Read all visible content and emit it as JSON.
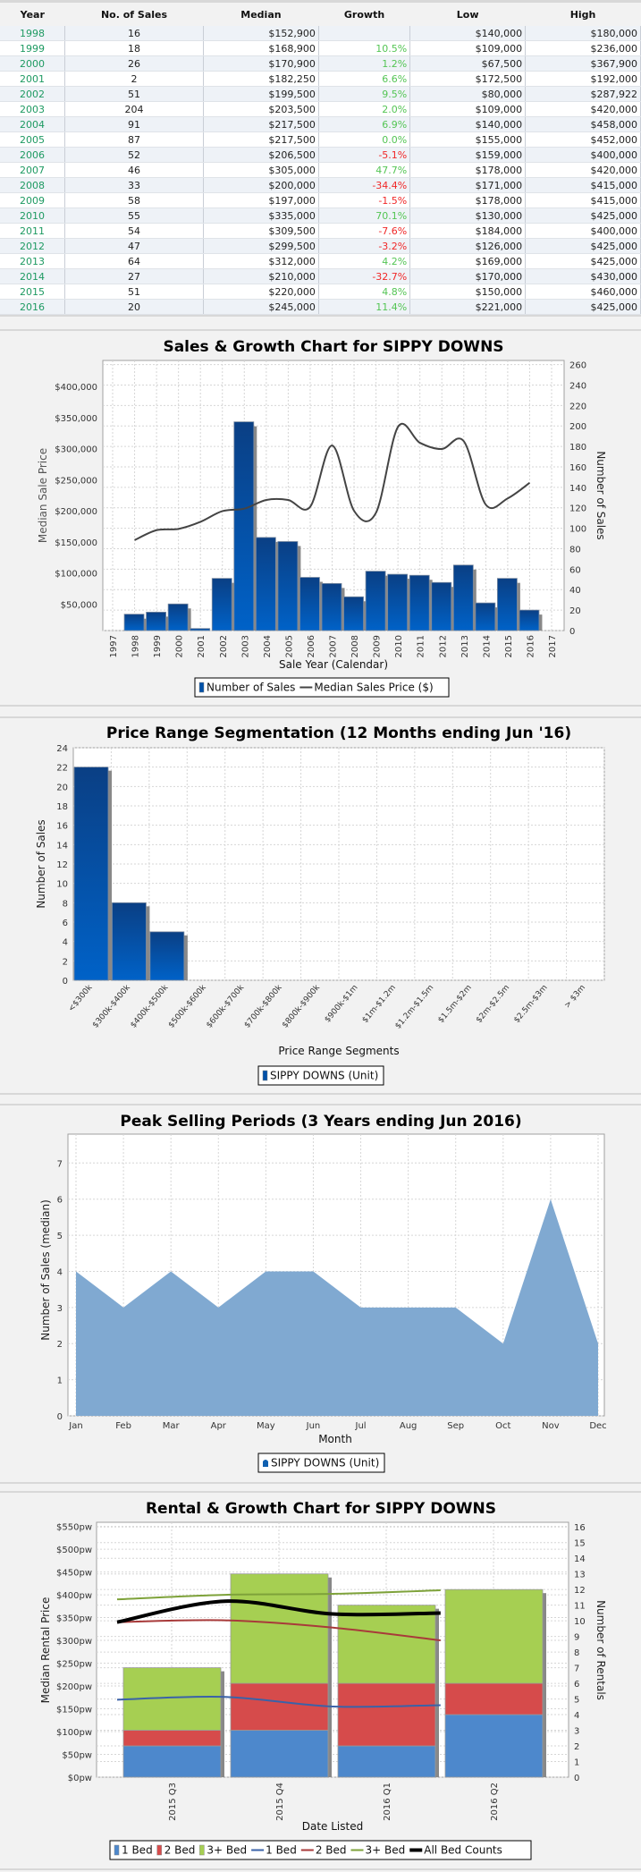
{
  "table": {
    "headers": [
      "Year",
      "No. of Sales",
      "Median",
      "Growth",
      "Low",
      "High"
    ],
    "rows": [
      {
        "year": "1998",
        "sales": "16",
        "median": "$152,900",
        "growth": "",
        "dir": "",
        "low": "$140,000",
        "high": "$180,000"
      },
      {
        "year": "1999",
        "sales": "18",
        "median": "$168,900",
        "growth": "10.5%",
        "dir": "up",
        "low": "$109,000",
        "high": "$236,000"
      },
      {
        "year": "2000",
        "sales": "26",
        "median": "$170,900",
        "growth": "1.2%",
        "dir": "up",
        "low": "$67,500",
        "high": "$367,900"
      },
      {
        "year": "2001",
        "sales": "2",
        "median": "$182,250",
        "growth": "6.6%",
        "dir": "up",
        "low": "$172,500",
        "high": "$192,000"
      },
      {
        "year": "2002",
        "sales": "51",
        "median": "$199,500",
        "growth": "9.5%",
        "dir": "up",
        "low": "$80,000",
        "high": "$287,922"
      },
      {
        "year": "2003",
        "sales": "204",
        "median": "$203,500",
        "growth": "2.0%",
        "dir": "up",
        "low": "$109,000",
        "high": "$420,000"
      },
      {
        "year": "2004",
        "sales": "91",
        "median": "$217,500",
        "growth": "6.9%",
        "dir": "up",
        "low": "$140,000",
        "high": "$458,000"
      },
      {
        "year": "2005",
        "sales": "87",
        "median": "$217,500",
        "growth": "0.0%",
        "dir": "up",
        "low": "$155,000",
        "high": "$452,000"
      },
      {
        "year": "2006",
        "sales": "52",
        "median": "$206,500",
        "growth": "-5.1%",
        "dir": "down",
        "low": "$159,000",
        "high": "$400,000"
      },
      {
        "year": "2007",
        "sales": "46",
        "median": "$305,000",
        "growth": "47.7%",
        "dir": "up",
        "low": "$178,000",
        "high": "$420,000"
      },
      {
        "year": "2008",
        "sales": "33",
        "median": "$200,000",
        "growth": "-34.4%",
        "dir": "down",
        "low": "$171,000",
        "high": "$415,000"
      },
      {
        "year": "2009",
        "sales": "58",
        "median": "$197,000",
        "growth": "-1.5%",
        "dir": "down",
        "low": "$178,000",
        "high": "$415,000"
      },
      {
        "year": "2010",
        "sales": "55",
        "median": "$335,000",
        "growth": "70.1%",
        "dir": "up",
        "low": "$130,000",
        "high": "$425,000"
      },
      {
        "year": "2011",
        "sales": "54",
        "median": "$309,500",
        "growth": "-7.6%",
        "dir": "down",
        "low": "$184,000",
        "high": "$400,000"
      },
      {
        "year": "2012",
        "sales": "47",
        "median": "$299,500",
        "growth": "-3.2%",
        "dir": "down",
        "low": "$126,000",
        "high": "$425,000"
      },
      {
        "year": "2013",
        "sales": "64",
        "median": "$312,000",
        "growth": "4.2%",
        "dir": "up",
        "low": "$169,000",
        "high": "$425,000"
      },
      {
        "year": "2014",
        "sales": "27",
        "median": "$210,000",
        "growth": "-32.7%",
        "dir": "down",
        "low": "$170,000",
        "high": "$430,000"
      },
      {
        "year": "2015",
        "sales": "51",
        "median": "$220,000",
        "growth": "4.8%",
        "dir": "up",
        "low": "$150,000",
        "high": "$460,000"
      },
      {
        "year": "2016",
        "sales": "20",
        "median": "$245,000",
        "growth": "11.4%",
        "dir": "up",
        "low": "$221,000",
        "high": "$425,000"
      }
    ]
  },
  "chart_data": [
    {
      "type": "bar+line",
      "title": "Sales & Growth Chart for SIPPY DOWNS",
      "xlabel": "Sale Year (Calendar)",
      "ylabel": "Median Sale Price",
      "y2label": "Number of Sales",
      "x_ticks": [
        "1997",
        "1998",
        "1999",
        "2000",
        "2001",
        "2002",
        "2003",
        "2004",
        "2005",
        "2006",
        "2007",
        "2008",
        "2009",
        "2010",
        "2011",
        "2012",
        "2013",
        "2014",
        "2015",
        "2016",
        "2017"
      ],
      "categories": [
        "1998",
        "1999",
        "2000",
        "2001",
        "2002",
        "2003",
        "2004",
        "2005",
        "2006",
        "2007",
        "2008",
        "2009",
        "2010",
        "2011",
        "2012",
        "2013",
        "2014",
        "2015",
        "2016"
      ],
      "series": [
        {
          "name": "Number of Sales",
          "axis": "right",
          "type": "bar",
          "values": [
            16,
            18,
            26,
            2,
            51,
            204,
            91,
            87,
            52,
            46,
            33,
            58,
            55,
            54,
            47,
            64,
            27,
            51,
            20
          ]
        },
        {
          "name": "Median Sales Price ($)",
          "axis": "left",
          "type": "line",
          "values": [
            152900,
            168900,
            170900,
            182250,
            199500,
            203500,
            217500,
            217500,
            206500,
            305000,
            200000,
            197000,
            335000,
            309500,
            299500,
            312000,
            210000,
            220000,
            245000
          ]
        }
      ],
      "ylim": [
        7300,
        442000
      ],
      "y2lim": [
        0,
        264
      ],
      "y_ticks": [
        "$50,000",
        "$100,000",
        "$150,000",
        "$200,000",
        "$250,000",
        "$300,000",
        "$350,000",
        "$400,000"
      ],
      "y2_ticks": [
        "0",
        "20",
        "40",
        "60",
        "80",
        "100",
        "120",
        "140",
        "160",
        "180",
        "200",
        "220",
        "240",
        "260"
      ],
      "legend": [
        "Number of Sales",
        "Median Sales Price ($)"
      ],
      "legend_position": "bottom",
      "colors": {
        "bar": "#0050a8",
        "line": "#444444"
      }
    },
    {
      "type": "bar",
      "title": "Price Range Segmentation (12 Months ending Jun '16)",
      "xlabel": "Price Range Segments",
      "ylabel": "Number of Sales",
      "categories": [
        "<$300k",
        "$300k-$400k",
        "$400k-$500k",
        "$500k-$600k",
        "$600k-$700k",
        "$700k-$800k",
        "$800k-$900k",
        "$900k-$1m",
        "$1m-$1.2m",
        "$1.2m-$1.5m",
        "$1.5m-$2m",
        "$2m-$2.5m",
        "$2.5m-$3m",
        "> $3m"
      ],
      "values": [
        22,
        8,
        5,
        0,
        0,
        0,
        0,
        0,
        0,
        0,
        0,
        0,
        0,
        0
      ],
      "ylim": [
        0,
        24
      ],
      "y_ticks": [
        "0",
        "2",
        "4",
        "6",
        "8",
        "10",
        "12",
        "14",
        "16",
        "18",
        "20",
        "22",
        "24"
      ],
      "legend": [
        "SIPPY DOWNS (Unit)"
      ],
      "legend_position": "bottom"
    },
    {
      "type": "area",
      "title": "Peak Selling Periods (3 Years ending Jun 2016)",
      "xlabel": "Month",
      "ylabel": "Number of Sales (median)",
      "categories": [
        "Jan",
        "Feb",
        "Mar",
        "Apr",
        "May",
        "Jun",
        "Jul",
        "Aug",
        "Sep",
        "Oct",
        "Nov",
        "Dec"
      ],
      "values": [
        4,
        3,
        4,
        3,
        4,
        4,
        3,
        3,
        3,
        2,
        6,
        2
      ],
      "ylim": [
        0,
        7.8
      ],
      "y_ticks": [
        "0",
        "1",
        "2",
        "3",
        "4",
        "5",
        "6",
        "7"
      ],
      "legend": [
        "SIPPY DOWNS (Unit)"
      ],
      "legend_position": "bottom",
      "colors": {
        "area": "#80a9d1"
      }
    },
    {
      "type": "stacked-bar+line",
      "title": "Rental & Growth Chart for SIPPY DOWNS",
      "xlabel": "Date Listed",
      "ylabel": "Median Rental Price",
      "y2label": "Number of Rentals",
      "categories": [
        "2015 Q3",
        "2015 Q4",
        "2016 Q1",
        "2016 Q2"
      ],
      "bars": [
        {
          "name": "1 Bed",
          "axis": "right",
          "values": [
            2,
            3,
            2,
            4
          ],
          "color": "#4d88cc"
        },
        {
          "name": "2 Bed",
          "axis": "right",
          "values": [
            1,
            3,
            4,
            2
          ],
          "color": "#d64b4b"
        },
        {
          "name": "3+ Bed",
          "axis": "right",
          "values": [
            4,
            7,
            5,
            6
          ],
          "color": "#a6cf52"
        }
      ],
      "lines": [
        {
          "name": "1 Bed",
          "axis": "left",
          "values": [
            170,
            176,
            155,
            158
          ],
          "color": "#3a62a8",
          "width": 2
        },
        {
          "name": "2 Bed",
          "axis": "left",
          "values": [
            340,
            344,
            328,
            300
          ],
          "color": "#a83a3a",
          "width": 2
        },
        {
          "name": "3+ Bed",
          "axis": "left",
          "values": [
            390,
            400,
            402,
            410
          ],
          "color": "#7ea23a",
          "width": 2
        },
        {
          "name": "All Bed Counts",
          "axis": "left",
          "values": [
            340,
            386,
            358,
            360
          ],
          "color": "#000000",
          "width": 4
        }
      ],
      "ylim": [
        0,
        559
      ],
      "y2lim": [
        0,
        16.3
      ],
      "y_ticks": [
        "$0pw",
        "$50pw",
        "$100pw",
        "$150pw",
        "$200pw",
        "$250pw",
        "$300pw",
        "$350pw",
        "$400pw",
        "$450pw",
        "$500pw",
        "$550pw"
      ],
      "y2_ticks": [
        "0",
        "1",
        "2",
        "3",
        "4",
        "5",
        "6",
        "7",
        "8",
        "9",
        "10",
        "11",
        "12",
        "13",
        "14",
        "15",
        "16"
      ],
      "legend": [
        "1 Bed",
        "2 Bed",
        "3+ Bed",
        "1 Bed",
        "2 Bed",
        "3+ Bed",
        "All Bed Counts"
      ],
      "legend_position": "bottom"
    }
  ]
}
